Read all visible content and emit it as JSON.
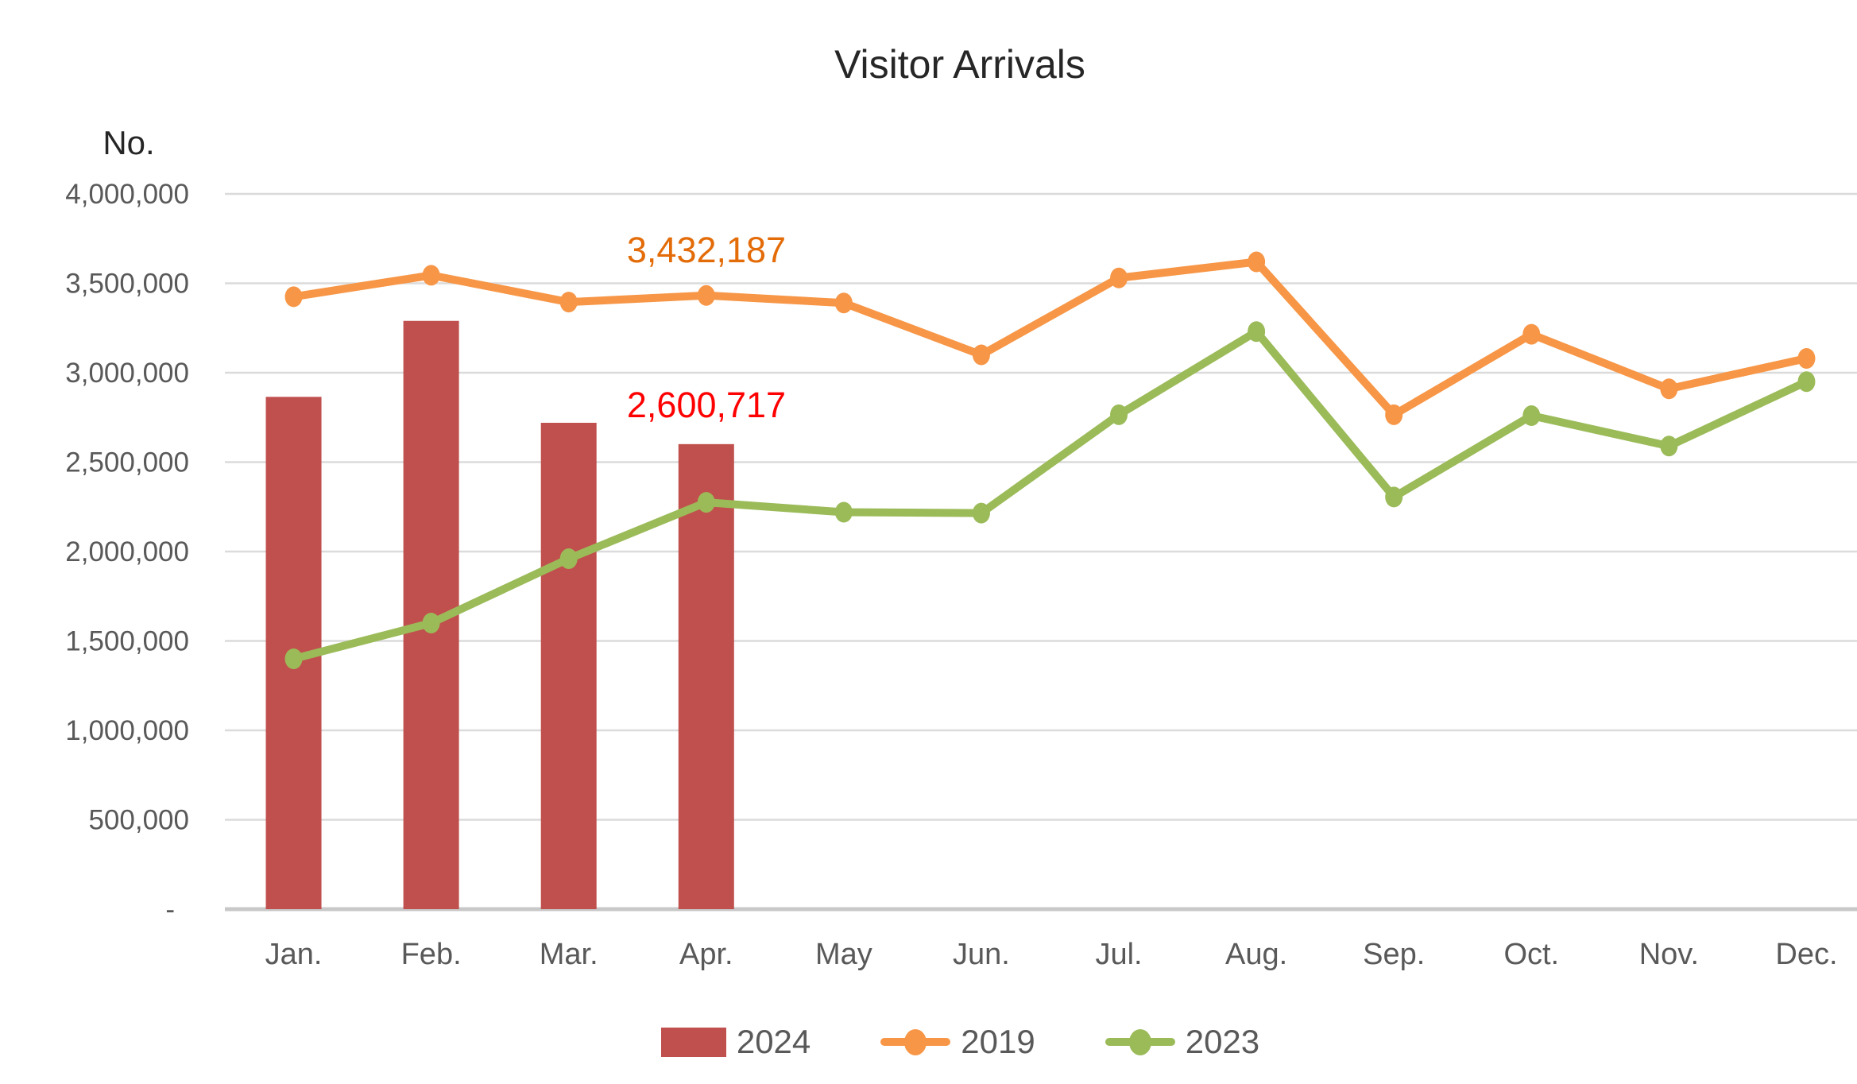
{
  "title": "Visitor Arrivals",
  "y_axis_title": "No.",
  "chart_data": {
    "type": "combo-bar-line",
    "title": "Visitor Arrivals",
    "xlabel": "",
    "ylabel": "No.",
    "ylim": [
      0,
      4000000
    ],
    "y_tick_step": 500000,
    "y_tick_labels": [
      "-",
      "500,000",
      "1,000,000",
      "1,500,000",
      "2,000,000",
      "2,500,000",
      "3,000,000",
      "3,500,000",
      "4,000,000"
    ],
    "grid": true,
    "legend_position": "bottom",
    "categories": [
      "Jan.",
      "Feb.",
      "Mar.",
      "Apr.",
      "May",
      "Jun.",
      "Jul.",
      "Aug.",
      "Sep.",
      "Oct.",
      "Nov.",
      "Dec."
    ],
    "series": [
      {
        "name": "2024",
        "type": "bar",
        "color": "#C0504D",
        "values": [
          2865000,
          3290000,
          2720000,
          2600717
        ]
      },
      {
        "name": "2019",
        "type": "line",
        "color": "#F79646",
        "values": [
          3425000,
          3545000,
          3395000,
          3432187,
          3390000,
          3100000,
          3530000,
          3620000,
          2765000,
          3215000,
          2910000,
          3080000
        ]
      },
      {
        "name": "2023",
        "type": "line",
        "color": "#9BBB59",
        "values": [
          1400000,
          1600000,
          1960000,
          2275000,
          2220000,
          2215000,
          2765000,
          3230000,
          2305000,
          2760000,
          2590000,
          2950000
        ]
      }
    ],
    "annotations": [
      {
        "text": "3,432,187",
        "color": "#E36C09",
        "series": "2019",
        "category": "Apr."
      },
      {
        "text": "2,600,717",
        "color": "#FF0000",
        "series": "2024",
        "category": "Apr."
      }
    ]
  },
  "legend": {
    "items": [
      {
        "label": "2024",
        "swatch": "bar",
        "color": "#C0504D"
      },
      {
        "label": "2019",
        "swatch": "line-dot",
        "color": "#F79646"
      },
      {
        "label": "2023",
        "swatch": "line-dot",
        "color": "#9BBB59"
      }
    ]
  },
  "colors": {
    "gridline": "#DBDBDB",
    "axis_line": "#C8C8C8",
    "axis_text": "#595959",
    "title_text": "#262626"
  }
}
